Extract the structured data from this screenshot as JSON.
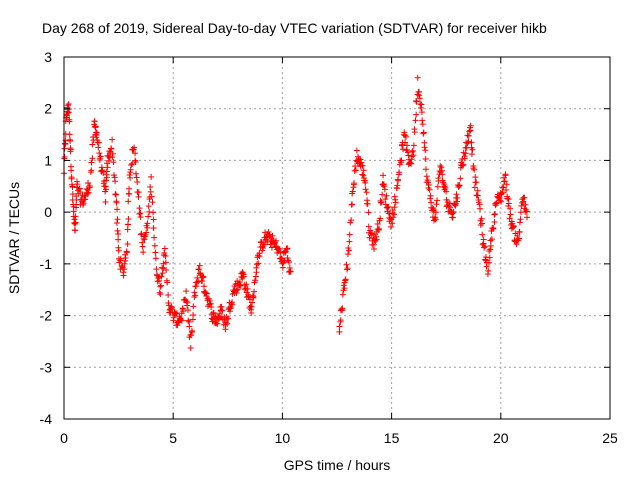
{
  "chart_data": {
    "type": "scatter",
    "title": "Day 268 of 2019, Sidereal Day-to-day VTEC variation (SDTVAR) for receiver hikb",
    "xlabel": "GPS time / hours",
    "ylabel": "SDTVAR / TECUs",
    "xlim": [
      0,
      25
    ],
    "ylim": [
      -4,
      3
    ],
    "xticks": [
      0,
      5,
      10,
      15,
      20,
      25
    ],
    "yticks": [
      -4,
      -3,
      -2,
      -1,
      0,
      1,
      2,
      3
    ],
    "grid": true,
    "marker": "+",
    "color": "#ff0000",
    "series": [
      {
        "name": "hikb",
        "trace": [
          [
            0.0,
            0.8
          ],
          [
            0.1,
            1.8
          ],
          [
            0.2,
            2.1
          ],
          [
            0.3,
            1.2
          ],
          [
            0.4,
            0.3
          ],
          [
            0.5,
            -0.4
          ],
          [
            0.6,
            0.5
          ],
          [
            0.8,
            0.2
          ],
          [
            1.0,
            0.3
          ],
          [
            1.2,
            0.6
          ],
          [
            1.4,
            1.7
          ],
          [
            1.5,
            1.5
          ],
          [
            1.7,
            0.9
          ],
          [
            1.9,
            0.3
          ],
          [
            2.0,
            1.0
          ],
          [
            2.2,
            1.3
          ],
          [
            2.4,
            0.2
          ],
          [
            2.5,
            -0.8
          ],
          [
            2.7,
            -1.2
          ],
          [
            2.9,
            -0.6
          ],
          [
            3.0,
            0.7
          ],
          [
            3.2,
            1.3
          ],
          [
            3.4,
            0.4
          ],
          [
            3.6,
            -0.7
          ],
          [
            3.8,
            -0.3
          ],
          [
            4.0,
            0.6
          ],
          [
            4.2,
            -1.0
          ],
          [
            4.4,
            -1.5
          ],
          [
            4.6,
            -0.7
          ],
          [
            4.8,
            -1.8
          ],
          [
            5.0,
            -2.0
          ],
          [
            5.2,
            -2.1
          ],
          [
            5.4,
            -2.0
          ],
          [
            5.6,
            -1.6
          ],
          [
            5.8,
            -2.6
          ],
          [
            6.0,
            -1.5
          ],
          [
            6.2,
            -1.1
          ],
          [
            6.4,
            -1.4
          ],
          [
            6.6,
            -1.7
          ],
          [
            6.8,
            -2.0
          ],
          [
            7.0,
            -2.1
          ],
          [
            7.2,
            -1.9
          ],
          [
            7.4,
            -2.2
          ],
          [
            7.6,
            -1.8
          ],
          [
            7.8,
            -1.5
          ],
          [
            8.0,
            -1.4
          ],
          [
            8.2,
            -1.2
          ],
          [
            8.4,
            -1.6
          ],
          [
            8.6,
            -1.9
          ],
          [
            8.8,
            -1.1
          ],
          [
            9.0,
            -0.7
          ],
          [
            9.2,
            -0.5
          ],
          [
            9.4,
            -0.5
          ],
          [
            9.6,
            -0.6
          ],
          [
            9.8,
            -0.7
          ],
          [
            10.0,
            -1.0
          ],
          [
            10.2,
            -0.7
          ],
          [
            10.4,
            -1.3
          ],
          [
            12.6,
            -2.3
          ],
          [
            12.8,
            -1.6
          ],
          [
            13.0,
            -0.9
          ],
          [
            13.2,
            0.3
          ],
          [
            13.4,
            1.1
          ],
          [
            13.6,
            0.9
          ],
          [
            13.8,
            0.6
          ],
          [
            14.0,
            -0.4
          ],
          [
            14.2,
            -0.6
          ],
          [
            14.4,
            -0.3
          ],
          [
            14.6,
            0.6
          ],
          [
            14.8,
            0.1
          ],
          [
            15.0,
            -0.2
          ],
          [
            15.2,
            0.3
          ],
          [
            15.4,
            1.0
          ],
          [
            15.6,
            1.5
          ],
          [
            15.8,
            0.9
          ],
          [
            16.0,
            1.2
          ],
          [
            16.2,
            2.5
          ],
          [
            16.4,
            1.9
          ],
          [
            16.6,
            0.7
          ],
          [
            16.8,
            0.2
          ],
          [
            17.0,
            -0.2
          ],
          [
            17.2,
            0.9
          ],
          [
            17.4,
            0.5
          ],
          [
            17.6,
            0.1
          ],
          [
            17.8,
            0.0
          ],
          [
            18.0,
            0.3
          ],
          [
            18.2,
            0.9
          ],
          [
            18.4,
            1.2
          ],
          [
            18.6,
            1.7
          ],
          [
            18.8,
            0.6
          ],
          [
            19.0,
            0.2
          ],
          [
            19.2,
            -0.6
          ],
          [
            19.4,
            -1.1
          ],
          [
            19.6,
            -0.4
          ],
          [
            19.8,
            0.2
          ],
          [
            20.0,
            0.3
          ],
          [
            20.2,
            0.7
          ],
          [
            20.4,
            0.0
          ],
          [
            20.6,
            -0.4
          ],
          [
            20.8,
            -0.6
          ],
          [
            21.0,
            0.3
          ],
          [
            21.2,
            -0.1
          ]
        ]
      }
    ]
  }
}
